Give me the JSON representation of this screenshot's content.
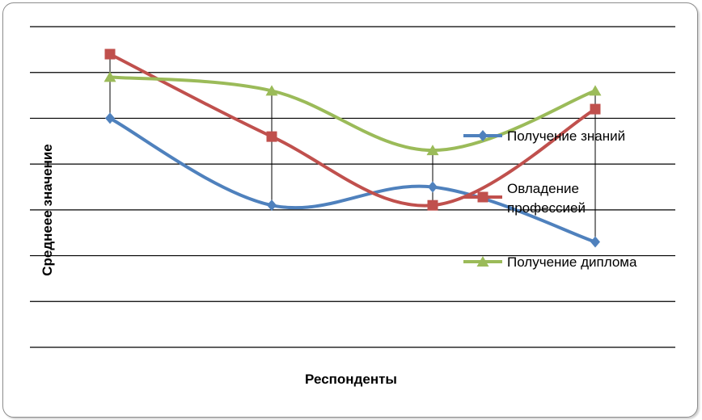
{
  "chart_data": {
    "type": "line",
    "xlabel": "Респонденты",
    "ylabel": "Среднеее значение",
    "categories": [
      "",
      "",
      "",
      ""
    ],
    "ylim": [
      0,
      7
    ],
    "grid": true,
    "legend_position": "right",
    "series": [
      {
        "name": "Получение знаний",
        "color": "#4f81bd",
        "marker": "diamond",
        "values": [
          5.0,
          3.1,
          3.5,
          2.3
        ]
      },
      {
        "name": "Овладение профессией",
        "color": "#c0504d",
        "marker": "square",
        "values": [
          6.4,
          4.6,
          3.1,
          5.2
        ]
      },
      {
        "name": "Получение диплома",
        "color": "#9bbb59",
        "marker": "triangle",
        "values": [
          5.9,
          5.6,
          4.3,
          5.6
        ]
      }
    ],
    "legend_lines": [
      [
        "Получение знаний"
      ],
      [
        "Овладение",
        "профессией"
      ],
      [
        "Получение диплома"
      ]
    ]
  }
}
